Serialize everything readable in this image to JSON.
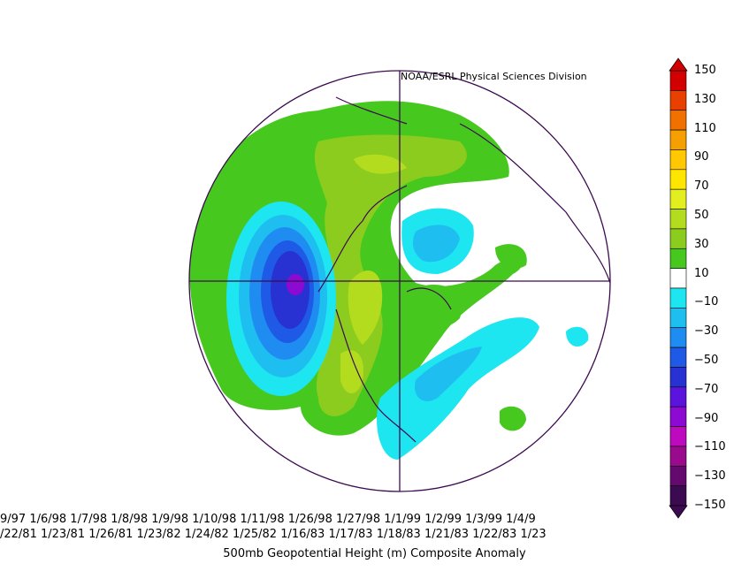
{
  "credit": "NOAA/ESRL Physical Sciences Division",
  "dates": {
    "line1": "9/97 1/6/98 1/7/98 1/8/98 1/9/98 1/10/98 1/11/98 1/26/98 1/27/98 1/1/99 1/2/99 1/3/99 1/4/9",
    "line2": "/22/81 1/23/81 1/26/81 1/23/82 1/24/82 1/25/82 1/16/83 1/17/83 1/18/83 1/21/83 1/22/83 1/23"
  },
  "title": "500mb Geopotential Height (m) Composite Anomaly",
  "colorbar": {
    "labels": [
      "150",
      "130",
      "110",
      "90",
      "70",
      "50",
      "30",
      "10",
      "−10",
      "−30",
      "−50",
      "−70",
      "−90",
      "−110",
      "−130",
      "−150"
    ],
    "colors": [
      "#d20000",
      "#e84000",
      "#f07000",
      "#f5a000",
      "#ffc800",
      "#ffe600",
      "#e2ee1e",
      "#b4dc1e",
      "#8ccc1e",
      "#46c81e",
      "#ffffff",
      "#1ee6f0",
      "#1ebef0",
      "#1e8cf0",
      "#1e5ae6",
      "#2832d2",
      "#5a14dc",
      "#8c0ad2",
      "#be0abe",
      "#9a0a8c",
      "#640a6e",
      "#3c0a50"
    ]
  },
  "map": {
    "anomaly_levels": [
      "green: +10",
      "yellow-green: +30",
      "olive: +50",
      "cyan: −10",
      "blue: −30 to −50",
      "dark blue: −70",
      "purple: −90"
    ]
  }
}
